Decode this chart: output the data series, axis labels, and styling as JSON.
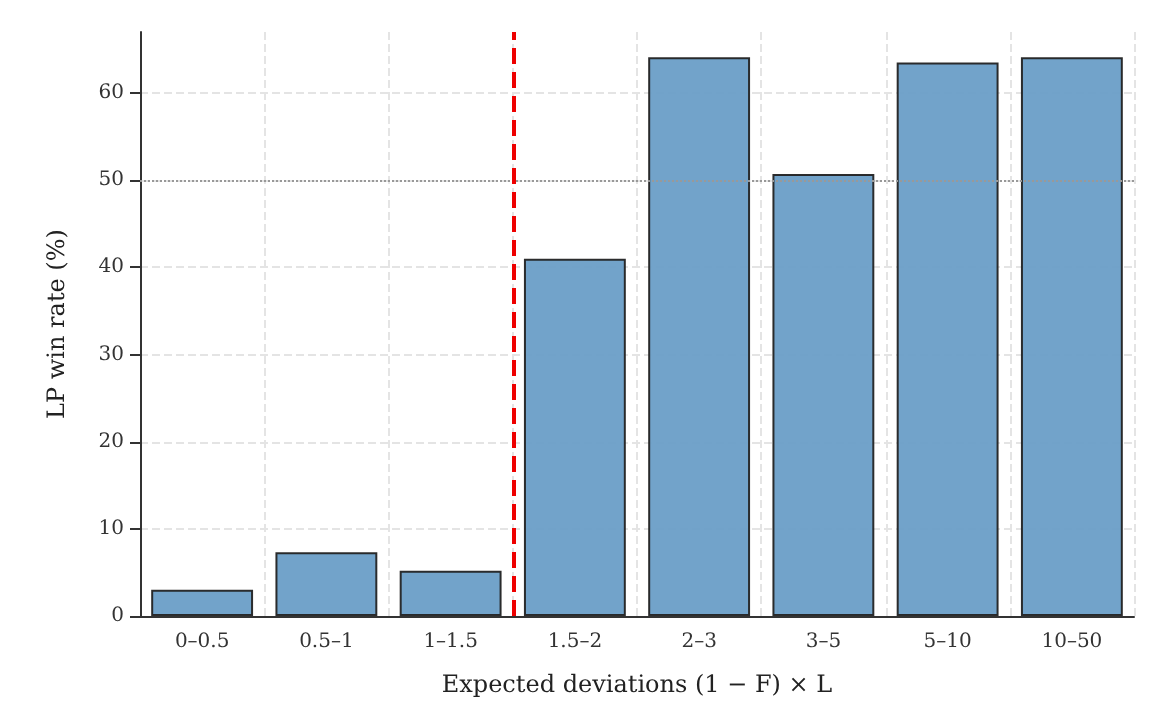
{
  "chart_data": {
    "type": "bar",
    "xlabel": "Expected deviations (1 − F) × L",
    "ylabel": "LP win rate (%)",
    "categories": [
      "0–0.5",
      "0.5–1",
      "1–1.5",
      "1.5–2",
      "2–3",
      "3–5",
      "5–10",
      "10–50"
    ],
    "values": [
      3.0,
      7.3,
      5.2,
      41.0,
      64.1,
      50.7,
      63.5,
      64.1
    ],
    "color": "#6a9ec7",
    "ylim": [
      0,
      67
    ],
    "yticks": [
      0,
      10,
      20,
      30,
      40,
      50,
      60
    ],
    "grid": true,
    "ref_lines": [
      {
        "axis": "y",
        "value": 50,
        "color": "#999999",
        "line_style": "dotted"
      },
      {
        "axis": "x",
        "value": "1.5–2",
        "color": "#ee0000",
        "line_style": "dashed"
      }
    ]
  }
}
